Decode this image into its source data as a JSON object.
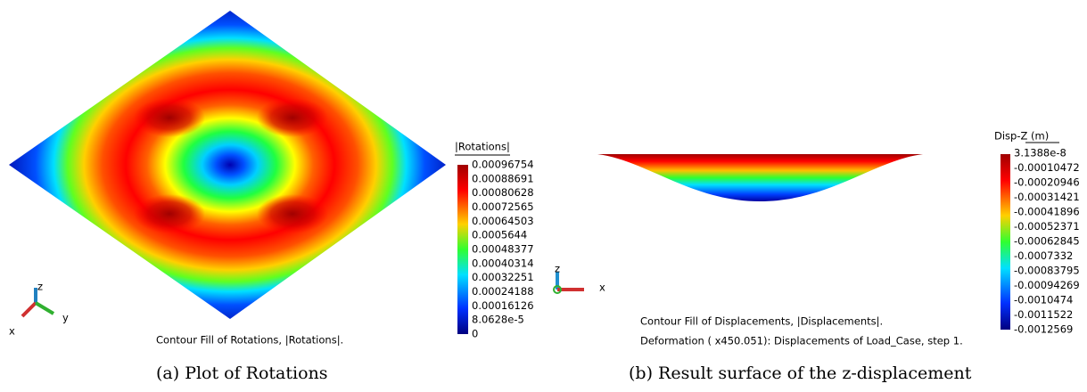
{
  "left": {
    "legend_title": "|Rotations|",
    "legend_labels": [
      "0.00096754",
      "0.00088691",
      "0.00080628",
      "0.00072565",
      "0.00064503",
      "0.0005644",
      "0.00048377",
      "0.00040314",
      "0.00032251",
      "0.00024188",
      "0.00016126",
      "8.0628e-5",
      "0"
    ],
    "axes": [
      "z",
      "x",
      "y"
    ],
    "plot_caption": "Contour Fill of Rotations, |Rotations|.",
    "figure_caption": "(a)  Plot of Rotations"
  },
  "right": {
    "legend_title": "Disp-Z (m)",
    "legend_labels": [
      "3.1388e-8",
      "-0.00010472",
      "-0.00020946",
      "-0.00031421",
      "-0.00041896",
      "-0.00052371",
      "-0.00062845",
      "-0.0007332",
      "-0.00083795",
      "-0.00094269",
      "-0.0010474",
      "-0.0011522",
      "-0.0012569"
    ],
    "axes": [
      "z",
      "x"
    ],
    "plot_caption": "Contour Fill of Displacements, |Displacements|.",
    "deformation_caption": "Deformation ( x450.051): Displacements of Load_Case, step 1.",
    "figure_caption": "(b)  Result surface of the z-displacement"
  }
}
